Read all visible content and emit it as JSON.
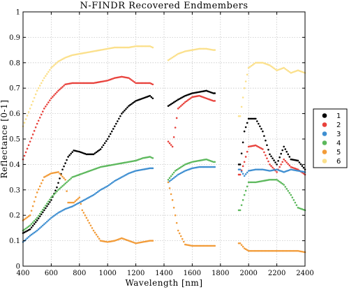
{
  "chart_data": {
    "type": "scatter",
    "title": "N-FINDR Recovered Endmembers",
    "xlabel": "Wavelength [nm]",
    "ylabel": "Reflectance [0-1]",
    "xlim": [
      400,
      2400
    ],
    "ylim": [
      0,
      1
    ],
    "x_ticks": [
      "400",
      "600",
      "800",
      "1000",
      "1200",
      "1400",
      "1600",
      "1800",
      "2000",
      "2200",
      "2400"
    ],
    "y_ticks": [
      "0",
      "0.1",
      "0.2",
      "0.3",
      "0.4",
      "0.5",
      "0.6",
      "0.7",
      "0.8",
      "0.9",
      "1"
    ],
    "grid": true,
    "legend_position": "right",
    "x_segments": [
      [
        400,
        1320
      ],
      [
        1430,
        1760
      ],
      [
        1930,
        2400
      ]
    ],
    "series": [
      {
        "name": "1",
        "color": "#000000",
        "points": [
          [
            400,
            0.13
          ],
          [
            450,
            0.145
          ],
          [
            500,
            0.18
          ],
          [
            550,
            0.22
          ],
          [
            600,
            0.26
          ],
          [
            640,
            0.31
          ],
          [
            680,
            0.38
          ],
          [
            720,
            0.43
          ],
          [
            760,
            0.455
          ],
          [
            800,
            0.45
          ],
          [
            850,
            0.44
          ],
          [
            900,
            0.44
          ],
          [
            950,
            0.46
          ],
          [
            1000,
            0.5
          ],
          [
            1050,
            0.55
          ],
          [
            1100,
            0.6
          ],
          [
            1150,
            0.63
          ],
          [
            1200,
            0.65
          ],
          [
            1250,
            0.66
          ],
          [
            1300,
            0.67
          ],
          [
            1320,
            0.66
          ],
          [
            1430,
            0.63
          ],
          [
            1500,
            0.655
          ],
          [
            1550,
            0.67
          ],
          [
            1600,
            0.68
          ],
          [
            1650,
            0.685
          ],
          [
            1700,
            0.69
          ],
          [
            1750,
            0.68
          ],
          [
            1940,
            0.4
          ],
          [
            1970,
            0.53
          ],
          [
            2000,
            0.58
          ],
          [
            2050,
            0.58
          ],
          [
            2100,
            0.53
          ],
          [
            2150,
            0.44
          ],
          [
            2200,
            0.4
          ],
          [
            2250,
            0.47
          ],
          [
            2300,
            0.42
          ],
          [
            2350,
            0.415
          ],
          [
            2400,
            0.38
          ]
        ]
      },
      {
        "name": "2",
        "color": "#e8413b",
        "points": [
          [
            400,
            0.42
          ],
          [
            450,
            0.49
          ],
          [
            500,
            0.56
          ],
          [
            550,
            0.62
          ],
          [
            600,
            0.66
          ],
          [
            650,
            0.69
          ],
          [
            700,
            0.715
          ],
          [
            750,
            0.72
          ],
          [
            800,
            0.72
          ],
          [
            900,
            0.72
          ],
          [
            1000,
            0.73
          ],
          [
            1050,
            0.74
          ],
          [
            1100,
            0.745
          ],
          [
            1150,
            0.74
          ],
          [
            1200,
            0.72
          ],
          [
            1250,
            0.72
          ],
          [
            1300,
            0.72
          ],
          [
            1320,
            0.715
          ],
          [
            1430,
            0.49
          ],
          [
            1460,
            0.47
          ],
          [
            1500,
            0.62
          ],
          [
            1550,
            0.645
          ],
          [
            1600,
            0.665
          ],
          [
            1650,
            0.67
          ],
          [
            1700,
            0.66
          ],
          [
            1750,
            0.65
          ],
          [
            1940,
            0.36
          ],
          [
            1970,
            0.41
          ],
          [
            2000,
            0.47
          ],
          [
            2050,
            0.475
          ],
          [
            2100,
            0.46
          ],
          [
            2150,
            0.4
          ],
          [
            2200,
            0.37
          ],
          [
            2250,
            0.42
          ],
          [
            2300,
            0.39
          ],
          [
            2350,
            0.38
          ],
          [
            2400,
            0.36
          ]
        ]
      },
      {
        "name": "3",
        "color": "#3f8fd1",
        "points": [
          [
            400,
            0.095
          ],
          [
            450,
            0.12
          ],
          [
            500,
            0.14
          ],
          [
            550,
            0.165
          ],
          [
            600,
            0.19
          ],
          [
            650,
            0.21
          ],
          [
            700,
            0.225
          ],
          [
            750,
            0.235
          ],
          [
            800,
            0.25
          ],
          [
            850,
            0.265
          ],
          [
            900,
            0.28
          ],
          [
            950,
            0.3
          ],
          [
            1000,
            0.315
          ],
          [
            1050,
            0.335
          ],
          [
            1100,
            0.35
          ],
          [
            1150,
            0.365
          ],
          [
            1200,
            0.375
          ],
          [
            1250,
            0.38
          ],
          [
            1300,
            0.385
          ],
          [
            1320,
            0.385
          ],
          [
            1430,
            0.33
          ],
          [
            1500,
            0.36
          ],
          [
            1550,
            0.375
          ],
          [
            1600,
            0.385
          ],
          [
            1650,
            0.39
          ],
          [
            1700,
            0.39
          ],
          [
            1750,
            0.39
          ],
          [
            1940,
            0.38
          ],
          [
            1970,
            0.355
          ],
          [
            2000,
            0.375
          ],
          [
            2050,
            0.38
          ],
          [
            2100,
            0.38
          ],
          [
            2150,
            0.375
          ],
          [
            2200,
            0.38
          ],
          [
            2250,
            0.37
          ],
          [
            2300,
            0.38
          ],
          [
            2350,
            0.375
          ],
          [
            2400,
            0.37
          ]
        ]
      },
      {
        "name": "4",
        "color": "#5cb85c",
        "points": [
          [
            400,
            0.14
          ],
          [
            450,
            0.16
          ],
          [
            500,
            0.19
          ],
          [
            550,
            0.23
          ],
          [
            600,
            0.27
          ],
          [
            650,
            0.3
          ],
          [
            700,
            0.325
          ],
          [
            750,
            0.35
          ],
          [
            800,
            0.36
          ],
          [
            850,
            0.37
          ],
          [
            900,
            0.38
          ],
          [
            950,
            0.39
          ],
          [
            1000,
            0.395
          ],
          [
            1050,
            0.4
          ],
          [
            1100,
            0.405
          ],
          [
            1150,
            0.41
          ],
          [
            1200,
            0.415
          ],
          [
            1250,
            0.425
          ],
          [
            1300,
            0.43
          ],
          [
            1320,
            0.425
          ],
          [
            1430,
            0.34
          ],
          [
            1480,
            0.375
          ],
          [
            1550,
            0.4
          ],
          [
            1600,
            0.41
          ],
          [
            1650,
            0.415
          ],
          [
            1700,
            0.42
          ],
          [
            1750,
            0.41
          ],
          [
            1940,
            0.22
          ],
          [
            1970,
            0.28
          ],
          [
            2000,
            0.33
          ],
          [
            2050,
            0.33
          ],
          [
            2100,
            0.335
          ],
          [
            2150,
            0.34
          ],
          [
            2200,
            0.34
          ],
          [
            2250,
            0.32
          ],
          [
            2300,
            0.28
          ],
          [
            2350,
            0.23
          ],
          [
            2400,
            0.22
          ]
        ]
      },
      {
        "name": "5",
        "color": "#f29b38",
        "points": [
          [
            400,
            0.18
          ],
          [
            450,
            0.2
          ],
          [
            500,
            0.29
          ],
          [
            550,
            0.35
          ],
          [
            600,
            0.365
          ],
          [
            650,
            0.37
          ],
          [
            700,
            0.34
          ],
          [
            720,
            0.25
          ],
          [
            760,
            0.25
          ],
          [
            800,
            0.27
          ],
          [
            820,
            0.22
          ],
          [
            850,
            0.19
          ],
          [
            900,
            0.14
          ],
          [
            950,
            0.1
          ],
          [
            1000,
            0.095
          ],
          [
            1050,
            0.1
          ],
          [
            1100,
            0.11
          ],
          [
            1150,
            0.1
          ],
          [
            1200,
            0.09
          ],
          [
            1250,
            0.095
          ],
          [
            1300,
            0.1
          ],
          [
            1320,
            0.1
          ],
          [
            1430,
            0.33
          ],
          [
            1460,
            0.26
          ],
          [
            1500,
            0.14
          ],
          [
            1550,
            0.085
          ],
          [
            1600,
            0.08
          ],
          [
            1650,
            0.08
          ],
          [
            1700,
            0.08
          ],
          [
            1750,
            0.08
          ],
          [
            1940,
            0.09
          ],
          [
            1970,
            0.07
          ],
          [
            2000,
            0.06
          ],
          [
            2050,
            0.06
          ],
          [
            2100,
            0.06
          ],
          [
            2150,
            0.06
          ],
          [
            2200,
            0.06
          ],
          [
            2250,
            0.06
          ],
          [
            2300,
            0.06
          ],
          [
            2350,
            0.06
          ],
          [
            2400,
            0.055
          ]
        ]
      },
      {
        "name": "6",
        "color": "#fbe08b",
        "points": [
          [
            400,
            0.55
          ],
          [
            450,
            0.62
          ],
          [
            500,
            0.69
          ],
          [
            550,
            0.74
          ],
          [
            600,
            0.78
          ],
          [
            650,
            0.805
          ],
          [
            700,
            0.82
          ],
          [
            750,
            0.83
          ],
          [
            800,
            0.835
          ],
          [
            850,
            0.84
          ],
          [
            900,
            0.845
          ],
          [
            950,
            0.85
          ],
          [
            1000,
            0.855
          ],
          [
            1050,
            0.86
          ],
          [
            1100,
            0.86
          ],
          [
            1150,
            0.86
          ],
          [
            1200,
            0.865
          ],
          [
            1250,
            0.865
          ],
          [
            1300,
            0.865
          ],
          [
            1320,
            0.86
          ],
          [
            1430,
            0.81
          ],
          [
            1500,
            0.835
          ],
          [
            1550,
            0.845
          ],
          [
            1600,
            0.85
          ],
          [
            1650,
            0.855
          ],
          [
            1700,
            0.855
          ],
          [
            1750,
            0.85
          ],
          [
            1940,
            0.59
          ],
          [
            1970,
            0.7
          ],
          [
            2000,
            0.78
          ],
          [
            2050,
            0.8
          ],
          [
            2100,
            0.8
          ],
          [
            2150,
            0.79
          ],
          [
            2200,
            0.77
          ],
          [
            2250,
            0.78
          ],
          [
            2300,
            0.76
          ],
          [
            2350,
            0.77
          ],
          [
            2400,
            0.76
          ]
        ]
      }
    ]
  }
}
